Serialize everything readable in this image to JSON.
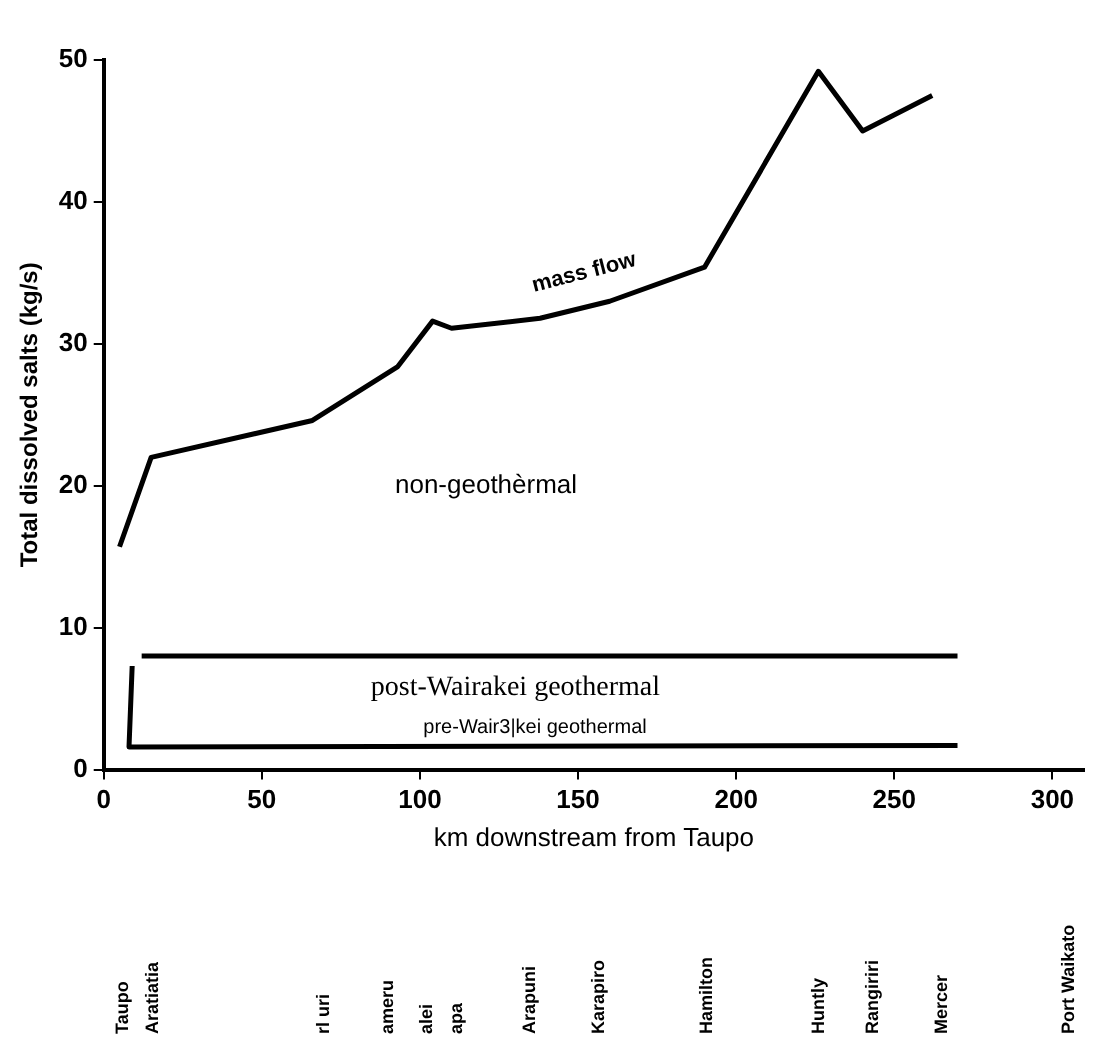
{
  "chart_data": {
    "type": "line",
    "xlabel": "km downstream from Taupo",
    "ylabel": "Total dissolved salts (kg/s)",
    "xlim": [
      0,
      310
    ],
    "xticks": [
      0,
      50,
      100,
      150,
      200,
      250,
      300
    ],
    "ylim": [
      0,
      50
    ],
    "yticks": [
      0,
      10,
      20,
      30,
      40,
      50
    ],
    "grid": false,
    "legend": false,
    "marker": "none",
    "line_style": "solid",
    "series": [
      {
        "color": "#000000",
        "x": [
          5,
          15,
          66,
          93,
          104,
          110,
          138,
          160,
          190,
          226,
          240,
          262
        ],
        "values": [
          15.7,
          22,
          24.6,
          28.4,
          31.6,
          31.1,
          31.8,
          33,
          35.4,
          49.2,
          45,
          47.5
        ]
      },
      {
        "color": "#000000",
        "x": [
          12,
          270
        ],
        "values": [
          8,
          8
        ]
      },
      {
        "color": "#000000",
        "x": [
          9,
          8,
          270
        ],
        "values": [
          7.3,
          1.6,
          1.7
        ]
      }
    ],
    "annotations": [
      "mass flow",
      "non-geothèrmal",
      "post-Wairakei geothermal",
      "pre-Wair3|kei geothermal",
      "Taupo",
      "Aratiatia",
      "rl uri",
      "ameru",
      "alei",
      "apa",
      "Arapuni",
      "Karapiro",
      "Hamilton",
      "Huntly",
      "Rangiriri",
      "Mercer",
      "Port Waikato"
    ]
  }
}
